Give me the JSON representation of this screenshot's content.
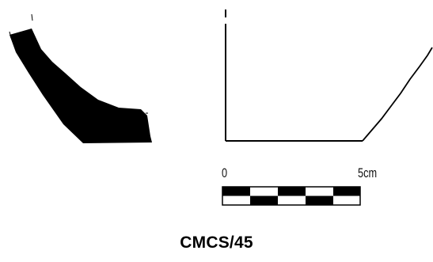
{
  "section_fill_color": "#000000",
  "profile_line_color": "#000000",
  "scale_bar": {
    "start_label": "0",
    "end_label": "5cm"
  },
  "caption": {
    "text": "CMCS/45"
  }
}
